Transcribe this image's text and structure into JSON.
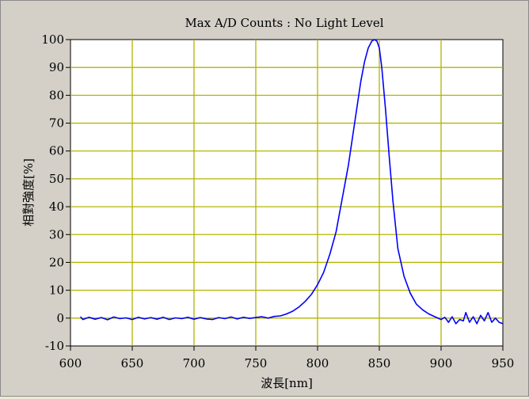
{
  "chart_data": {
    "type": "line",
    "title": "Max A/D Counts : No Light Level",
    "xlabel": "波長[nm]",
    "ylabel": "相對強度[%]",
    "xlim": [
      600,
      950
    ],
    "ylim": [
      -10,
      100
    ],
    "x_ticks": [
      600,
      650,
      700,
      750,
      800,
      850,
      900,
      950
    ],
    "y_ticks": [
      -10,
      0,
      10,
      20,
      30,
      40,
      50,
      60,
      70,
      80,
      90,
      100
    ],
    "grid": true,
    "colors": {
      "line": "#0000ff",
      "grid": "#b4b400",
      "plot_background": "#ffffff",
      "frame_background": "#d4d0c8"
    },
    "series": [
      {
        "x": [
          608,
          610,
          615,
          620,
          625,
          630,
          635,
          640,
          645,
          650,
          655,
          660,
          665,
          670,
          675,
          680,
          685,
          690,
          695,
          700,
          705,
          710,
          715,
          720,
          725,
          730,
          735,
          740,
          745,
          750,
          755,
          760,
          765,
          770,
          775,
          780,
          785,
          790,
          795,
          800,
          805,
          810,
          815,
          820,
          825,
          830,
          835,
          838,
          841,
          844,
          846,
          848,
          850,
          852,
          855,
          858,
          861,
          865,
          870,
          875,
          880,
          885,
          890,
          895,
          900,
          903,
          906,
          909,
          912,
          915,
          918,
          920,
          923,
          926,
          929,
          932,
          935,
          938,
          941,
          944,
          947,
          950
        ],
        "y": [
          0.5,
          -0.5,
          0.3,
          -0.4,
          0.2,
          -0.6,
          0.4,
          -0.2,
          0.1,
          -0.5,
          0.3,
          -0.3,
          0.2,
          -0.4,
          0.3,
          -0.5,
          0.1,
          -0.2,
          0.3,
          -0.4,
          0.2,
          -0.3,
          -0.5,
          0.2,
          -0.2,
          0.4,
          -0.3,
          0.3,
          -0.1,
          0.2,
          0.5,
          0.0,
          0.6,
          0.8,
          1.5,
          2.5,
          4.0,
          6.0,
          8.5,
          12.0,
          16.5,
          23.0,
          31.0,
          43.0,
          55.0,
          70.0,
          85.0,
          92.0,
          97.0,
          99.5,
          100.0,
          99.5,
          97.0,
          90.0,
          75.0,
          58.0,
          42.0,
          25.0,
          15.0,
          9.0,
          5.0,
          3.0,
          1.5,
          0.5,
          -0.5,
          0.3,
          -1.5,
          0.5,
          -2.0,
          -0.5,
          -1.0,
          2.0,
          -1.5,
          0.5,
          -2.0,
          1.0,
          -1.0,
          2.0,
          -1.5,
          0.0,
          -1.5,
          -2.0
        ]
      }
    ]
  }
}
